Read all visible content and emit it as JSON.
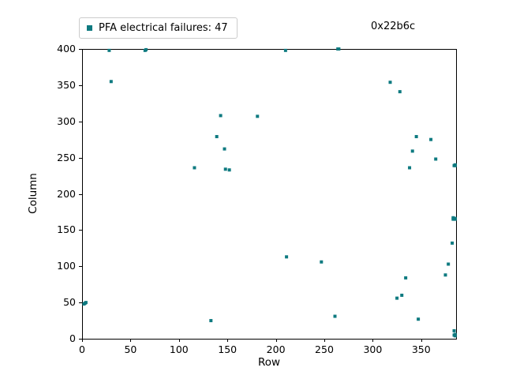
{
  "figure": {
    "legend_label": "PFA electrical failures: 47",
    "annotation": "0x22b6c",
    "marker_color": "#0e7a80",
    "spine_color": "#000000",
    "background_color": "#ffffff"
  },
  "chart_data": {
    "type": "scatter",
    "title": "",
    "xlabel": "Row",
    "ylabel": "Column",
    "xlim": [
      0,
      386
    ],
    "ylim": [
      0,
      400
    ],
    "x_ticks": [
      0,
      50,
      100,
      150,
      200,
      250,
      300,
      350
    ],
    "y_ticks": [
      0,
      50,
      100,
      150,
      200,
      250,
      300,
      350,
      400
    ],
    "grid": false,
    "legend": [
      "PFA electrical failures: 47"
    ],
    "legend_position": "upper left, above axes",
    "series": [
      {
        "name": "PFA electrical failures: 47",
        "marker": "square",
        "count": 47,
        "points": [
          [
            2,
            48
          ],
          [
            3,
            49
          ],
          [
            4,
            50
          ],
          [
            28,
            398
          ],
          [
            30,
            355
          ],
          [
            65,
            398
          ],
          [
            66,
            399
          ],
          [
            116,
            236
          ],
          [
            133,
            25
          ],
          [
            139,
            279
          ],
          [
            143,
            308
          ],
          [
            147,
            262
          ],
          [
            148,
            234
          ],
          [
            152,
            233
          ],
          [
            181,
            307
          ],
          [
            210,
            398
          ],
          [
            211,
            113
          ],
          [
            247,
            106
          ],
          [
            261,
            31
          ],
          [
            264,
            400
          ],
          [
            265,
            400
          ],
          [
            318,
            354
          ],
          [
            325,
            56
          ],
          [
            328,
            341
          ],
          [
            330,
            60
          ],
          [
            334,
            84
          ],
          [
            338,
            236
          ],
          [
            341,
            259
          ],
          [
            345,
            279
          ],
          [
            347,
            27
          ],
          [
            360,
            275
          ],
          [
            365,
            248
          ],
          [
            375,
            88
          ],
          [
            378,
            103
          ],
          [
            382,
            132
          ],
          [
            383,
            165
          ],
          [
            383,
            167
          ],
          [
            384,
            166
          ],
          [
            385,
            166
          ],
          [
            384,
            239
          ],
          [
            385,
            240
          ],
          [
            384,
            11
          ],
          [
            385,
            4
          ],
          [
            385,
            6
          ],
          [
            385,
            165
          ],
          [
            384,
            5
          ],
          [
            385,
            239
          ]
        ]
      }
    ]
  }
}
